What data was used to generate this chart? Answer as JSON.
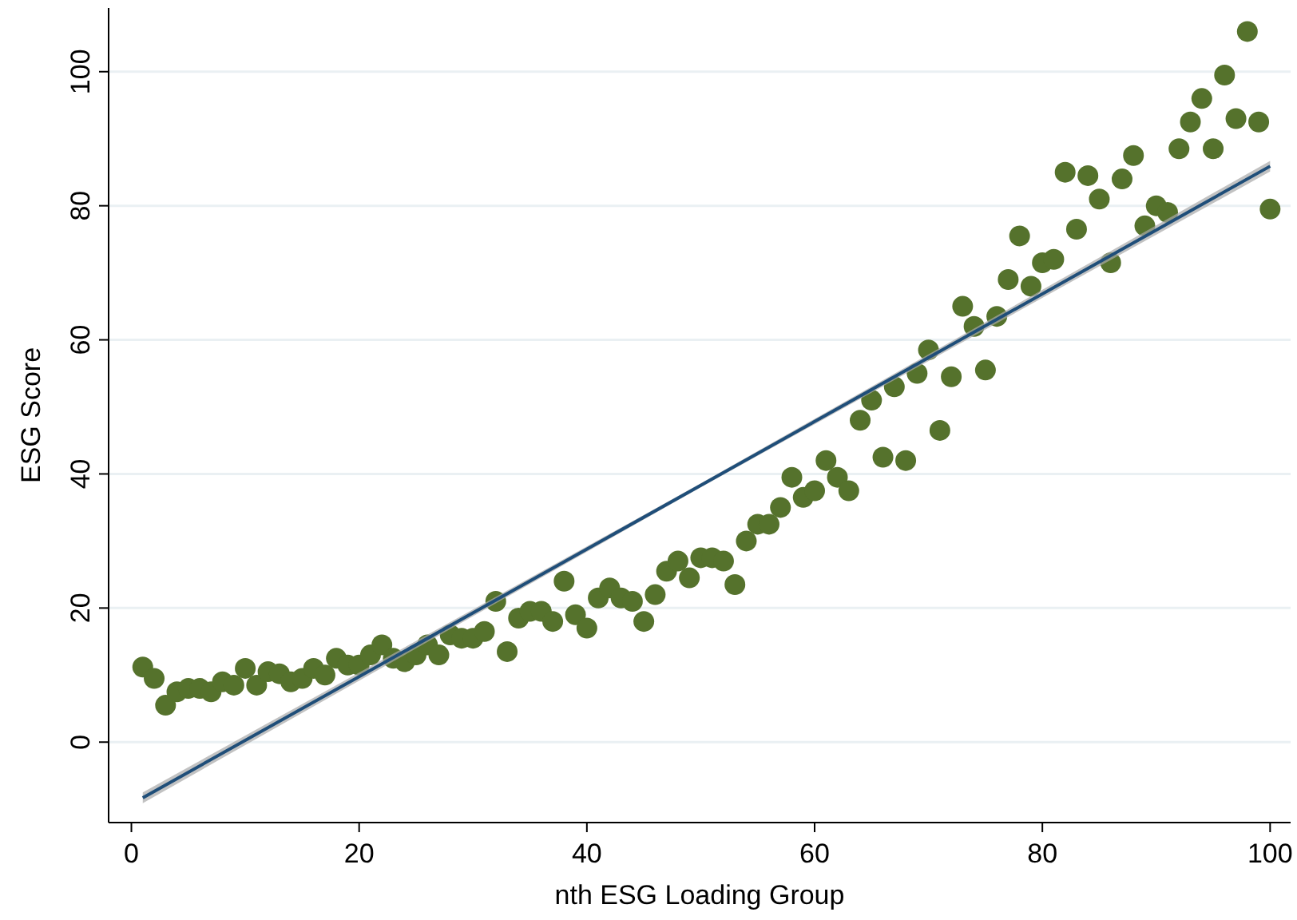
{
  "chart_data": {
    "type": "scatter",
    "xlabel": "nth ESG Loading Group",
    "ylabel": "ESG Score",
    "xlim": [
      -2,
      101.8
    ],
    "ylim": [
      -12,
      109.5
    ],
    "xticks": [
      0,
      20,
      40,
      60,
      80,
      100
    ],
    "yticks": [
      0,
      20,
      40,
      60,
      80,
      100
    ],
    "grid": "y",
    "marker": "circle",
    "series": [
      {
        "color": "#55722c",
        "x": [
          1,
          2,
          3,
          4,
          5,
          6,
          7,
          8,
          9,
          10,
          11,
          12,
          13,
          14,
          15,
          16,
          17,
          18,
          19,
          20,
          21,
          22,
          23,
          24,
          25,
          26,
          27,
          28,
          29,
          30,
          31,
          32,
          33,
          34,
          35,
          36,
          37,
          38,
          39,
          40,
          41,
          42,
          43,
          44,
          45,
          46,
          47,
          48,
          49,
          50,
          51,
          52,
          53,
          54,
          55,
          56,
          57,
          58,
          59,
          60,
          61,
          62,
          63,
          64,
          65,
          66,
          67,
          68,
          69,
          70,
          71,
          72,
          73,
          74,
          75,
          76,
          77,
          78,
          79,
          80,
          81,
          82,
          83,
          84,
          85,
          86,
          87,
          88,
          89,
          90,
          91,
          92,
          93,
          94,
          95,
          96,
          97,
          98,
          99,
          100
        ],
        "values": [
          11.2,
          9.5,
          5.5,
          7.5,
          8,
          8,
          7.5,
          9,
          8.5,
          11,
          8.5,
          10.5,
          10.2,
          9,
          9.5,
          11,
          10,
          12.5,
          11.5,
          11.5,
          13,
          14.5,
          12.5,
          12,
          13,
          14.5,
          13,
          16,
          15.5,
          15.5,
          16.5,
          21,
          13.5,
          18.5,
          19.5,
          19.5,
          18,
          24,
          19,
          17,
          21.5,
          23,
          21.5,
          21,
          18,
          22,
          25.5,
          27,
          24.5,
          27.5,
          27.5,
          27,
          23.5,
          30,
          32.5,
          32.5,
          35,
          39.5,
          36.5,
          37.5,
          42,
          39.5,
          37.5,
          48,
          51,
          42.5,
          53,
          42,
          55,
          58.5,
          46.5,
          54.5,
          65,
          62,
          55.5,
          63.5,
          69,
          75.5,
          68,
          71.5,
          72,
          85,
          76.5,
          84.5,
          81,
          71.5,
          84,
          87.5,
          77,
          80,
          79,
          88.5,
          92.5,
          96,
          88.5,
          99.5,
          93,
          106,
          92.5,
          79.5
        ]
      },
      {
        "type": "line",
        "color": "#1f4e79",
        "marker": "none",
        "line_style": "solid",
        "x": [
          1,
          50,
          100
        ],
        "values": [
          -8.3,
          38.3,
          85.9
        ],
        "lower": [
          -9.1,
          38,
          85.1
        ],
        "upper": [
          -7.5,
          38.6,
          86.7
        ]
      }
    ]
  }
}
